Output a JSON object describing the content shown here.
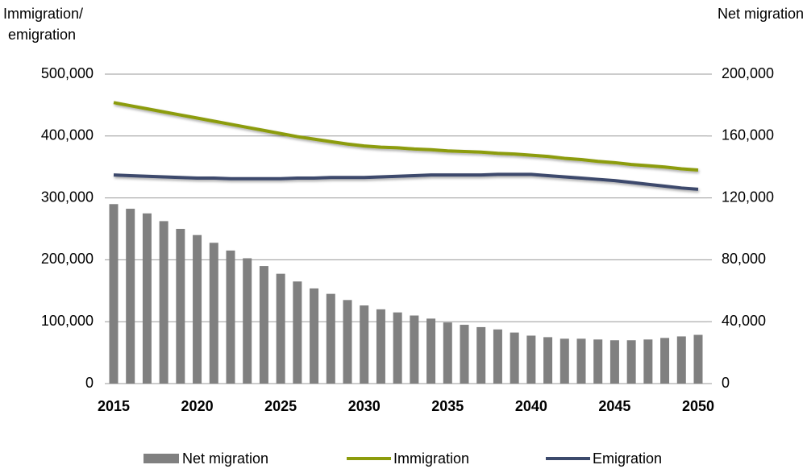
{
  "chart_data": {
    "type": "bar-line",
    "y_label": [
      "Immigration/",
      "emigration"
    ],
    "y2_label": "Net migration",
    "x": [
      2015,
      2016,
      2017,
      2018,
      2019,
      2020,
      2021,
      2022,
      2023,
      2024,
      2025,
      2026,
      2027,
      2028,
      2029,
      2030,
      2031,
      2032,
      2033,
      2034,
      2035,
      2036,
      2037,
      2038,
      2039,
      2040,
      2041,
      2042,
      2043,
      2044,
      2045,
      2046,
      2047,
      2048,
      2049,
      2050
    ],
    "xlim": [
      2015,
      2050
    ],
    "xticks": [
      2015,
      2020,
      2025,
      2030,
      2035,
      2040,
      2045,
      2050
    ],
    "ylim": [
      0,
      500000
    ],
    "yticks": [
      {
        "value": 0,
        "label": "0"
      },
      {
        "value": 100000,
        "label": "100,000"
      },
      {
        "value": 200000,
        "label": "200,000"
      },
      {
        "value": 300000,
        "label": "300,000"
      },
      {
        "value": 400000,
        "label": "400,000"
      },
      {
        "value": 500000,
        "label": "500,000"
      }
    ],
    "y2lim": [
      0,
      200000
    ],
    "y2ticks": [
      {
        "value": 0,
        "label": "0"
      },
      {
        "value": 40000,
        "label": "40,000"
      },
      {
        "value": 80000,
        "label": "80,000"
      },
      {
        "value": 120000,
        "label": "120,000"
      },
      {
        "value": 160000,
        "label": "160,000"
      },
      {
        "value": 200000,
        "label": "200,000"
      }
    ],
    "grid": true,
    "series": [
      {
        "name": "Net migration",
        "type": "bar",
        "axis": "y2",
        "color": "#808080",
        "values": [
          116000,
          113000,
          110000,
          105000,
          100000,
          96000,
          91000,
          86000,
          81000,
          76000,
          71000,
          66000,
          61500,
          58000,
          54000,
          50500,
          48000,
          46000,
          44000,
          42000,
          39500,
          38000,
          36500,
          35000,
          33000,
          31000,
          30000,
          29000,
          29000,
          28500,
          28000,
          28000,
          28500,
          29500,
          30500,
          31500
        ]
      },
      {
        "name": "Immigration",
        "type": "line",
        "color": "#8c9c0c",
        "values": [
          454000,
          449000,
          444000,
          439000,
          434000,
          429000,
          424000,
          419000,
          414000,
          409000,
          404000,
          399000,
          395000,
          391000,
          387000,
          384000,
          382000,
          381000,
          379000,
          378000,
          376000,
          375000,
          374000,
          372000,
          371000,
          369000,
          367000,
          364000,
          362000,
          359000,
          357000,
          354000,
          352000,
          350000,
          347000,
          345000
        ]
      },
      {
        "name": "Emigration",
        "type": "line",
        "color": "#3c4a6c",
        "values": [
          337000,
          336000,
          335000,
          334000,
          333000,
          332000,
          332000,
          331000,
          331000,
          331000,
          331000,
          332000,
          332000,
          333000,
          333000,
          333000,
          334000,
          335000,
          336000,
          337000,
          337000,
          337000,
          337000,
          338000,
          338000,
          338000,
          336000,
          334000,
          332000,
          330000,
          328000,
          325000,
          322000,
          319000,
          316000,
          314000
        ]
      }
    ]
  }
}
